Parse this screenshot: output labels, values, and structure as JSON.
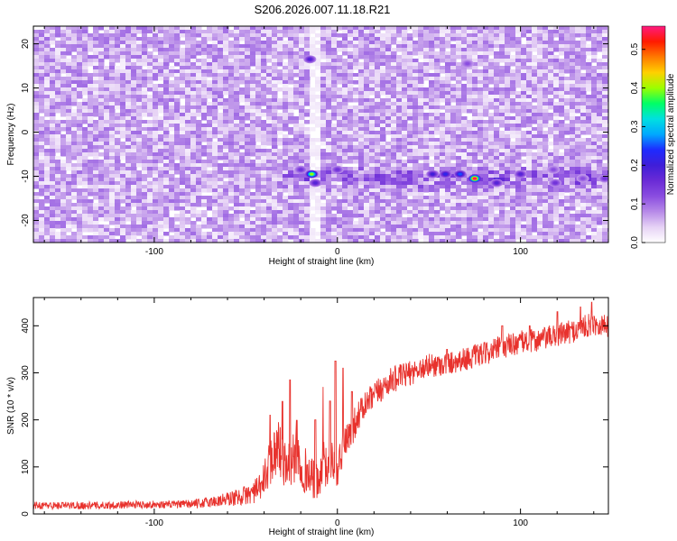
{
  "title": "S206.2026.007.11.18.R21",
  "colors": {
    "snr_line": "#e8322d",
    "axis": "#000000",
    "colormap": [
      "#ffffff",
      "#e6d2f5",
      "#b78ae8",
      "#8a4de0",
      "#6a2bd6",
      "#3f1ed8",
      "#1e2bff",
      "#00a8ff",
      "#00e0e0",
      "#00ff66",
      "#9cff00",
      "#ffd000",
      "#ff7a00",
      "#ff1a00",
      "#ff1a80"
    ]
  },
  "chart_data": [
    {
      "type": "heatmap",
      "xlabel": "Height of straight line (km)",
      "ylabel": "Frequency (Hz)",
      "xlim": [
        -166,
        148
      ],
      "ylim": [
        -25,
        24
      ],
      "xticks": [
        -100,
        0,
        100
      ],
      "xtick_labels": [
        "-100",
        "0",
        "100"
      ],
      "yticks": [
        -20,
        -10,
        0,
        10,
        20
      ],
      "ytick_labels": [
        "-20",
        "-10",
        "0",
        "10",
        "20"
      ],
      "grid": false,
      "colorbar": {
        "label": "Normalized spectral amplitude",
        "range": [
          0,
          0.56
        ],
        "ticks": [
          0,
          0.1,
          0.2,
          0.3,
          0.4,
          0.5
        ],
        "tick_labels": [
          "0.0",
          "0.1",
          "0.2",
          "0.3",
          "0.4",
          "0.5"
        ]
      },
      "background_level": 0.05,
      "band": {
        "frequency": -10,
        "x_range": [
          -30,
          148
        ],
        "level": 0.1
      },
      "gap_x": [
        -18,
        -12
      ],
      "peaks": [
        {
          "x": -15,
          "y": 16.5,
          "value": 0.18
        },
        {
          "x": 71,
          "y": 15.5,
          "value": 0.12
        },
        {
          "x": -20,
          "y": -8.5,
          "value": 0.15
        },
        {
          "x": -14,
          "y": -9.5,
          "value": 0.4
        },
        {
          "x": -12,
          "y": -11.5,
          "value": 0.18
        },
        {
          "x": 0,
          "y": -8.5,
          "value": 0.15
        },
        {
          "x": 52,
          "y": -9.5,
          "value": 0.2
        },
        {
          "x": 59,
          "y": -9.5,
          "value": 0.22
        },
        {
          "x": 67,
          "y": -9.5,
          "value": 0.25
        },
        {
          "x": 75,
          "y": -10.5,
          "value": 0.55
        },
        {
          "x": 87,
          "y": -11.5,
          "value": 0.18
        },
        {
          "x": 100,
          "y": -9.5,
          "value": 0.18
        },
        {
          "x": 118,
          "y": -8.5,
          "value": 0.12
        },
        {
          "x": 119,
          "y": -11.5,
          "value": 0.15
        },
        {
          "x": 134,
          "y": -10.5,
          "value": 0.12
        },
        {
          "x": 146,
          "y": -10.5,
          "value": 0.15
        }
      ]
    },
    {
      "type": "line",
      "xlabel": "Height of straight line (km)",
      "ylabel": "SNR (10 * v/v)",
      "xlim": [
        -166,
        148
      ],
      "ylim": [
        0,
        460
      ],
      "xticks": [
        -100,
        0,
        100
      ],
      "xtick_labels": [
        "-100",
        "0",
        "100"
      ],
      "yticks": [
        0,
        100,
        200,
        300,
        400
      ],
      "ytick_labels": [
        "0",
        "100",
        "200",
        "300",
        "400"
      ],
      "grid": false,
      "series": [
        {
          "x": [
            -166,
            -150,
            -130,
            -110,
            -90,
            -75,
            -65,
            -55,
            -48,
            -42,
            -38,
            -35,
            -32,
            -30,
            -28,
            -25,
            -22,
            -20,
            -18,
            -15,
            -12,
            -10,
            -8,
            -5,
            -3,
            0,
            3,
            5,
            8,
            10,
            15,
            20,
            25,
            30,
            40,
            50,
            60,
            70,
            80,
            90,
            100,
            110,
            120,
            130,
            140,
            148
          ],
          "y": [
            18,
            18,
            18,
            20,
            20,
            22,
            28,
            35,
            42,
            55,
            95,
            130,
            145,
            120,
            100,
            110,
            125,
            105,
            95,
            80,
            70,
            60,
            110,
            90,
            120,
            80,
            140,
            150,
            175,
            200,
            230,
            250,
            270,
            285,
            300,
            315,
            320,
            330,
            340,
            355,
            365,
            370,
            380,
            390,
            405,
            400
          ],
          "noise": [
            8,
            8,
            8,
            8,
            8,
            10,
            14,
            18,
            22,
            30,
            45,
            55,
            60,
            55,
            50,
            55,
            60,
            55,
            50,
            45,
            40,
            40,
            50,
            45,
            50,
            40,
            45,
            40,
            35,
            35,
            30,
            30,
            28,
            28,
            26,
            26,
            25,
            25,
            25,
            25,
            25,
            25,
            25,
            25,
            25,
            25
          ],
          "spikes": [
            {
              "x": -37,
              "y": 210
            },
            {
              "x": -30,
              "y": 240
            },
            {
              "x": -26,
              "y": 285
            },
            {
              "x": -22,
              "y": 200
            },
            {
              "x": -12,
              "y": 200
            },
            {
              "x": -8,
              "y": 270
            },
            {
              "x": -4,
              "y": 240
            },
            {
              "x": -1,
              "y": 325
            },
            {
              "x": 3,
              "y": 310
            },
            {
              "x": 8,
              "y": 260
            },
            {
              "x": 45,
              "y": 320
            },
            {
              "x": 60,
              "y": 350
            },
            {
              "x": 90,
              "y": 400
            },
            {
              "x": 105,
              "y": 400
            },
            {
              "x": 120,
              "y": 430
            },
            {
              "x": 133,
              "y": 440
            },
            {
              "x": 139,
              "y": 450
            }
          ]
        }
      ]
    }
  ]
}
